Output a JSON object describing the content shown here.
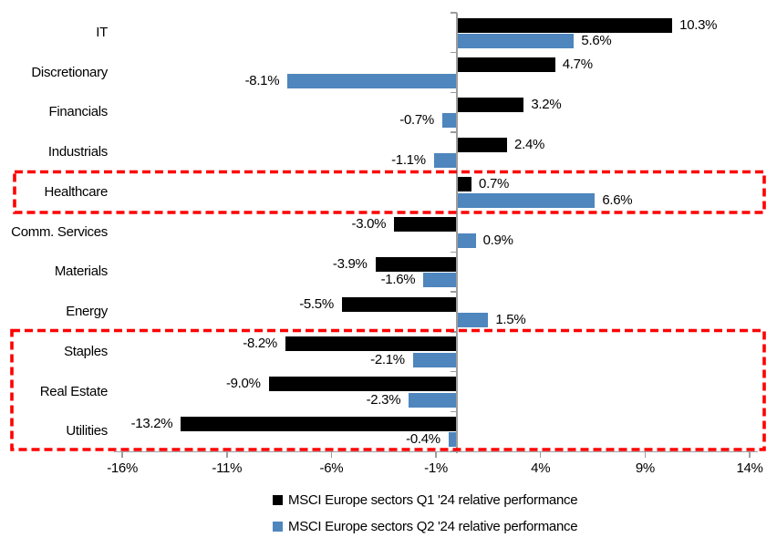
{
  "chart_data": {
    "type": "bar",
    "orientation": "horizontal",
    "title": "",
    "categories": [
      "IT",
      "Discretionary",
      "Financials",
      "Industrials",
      "Healthcare",
      "Comm. Services",
      "Materials",
      "Energy",
      "Staples",
      "Real Estate",
      "Utilities"
    ],
    "series": [
      {
        "name": "MSCI Europe sectors Q1 '24 relative performance",
        "color": "#000000",
        "values": [
          10.3,
          4.7,
          3.2,
          2.4,
          0.7,
          -3.0,
          -3.9,
          -5.5,
          -8.2,
          -9.0,
          -13.2
        ],
        "labels": [
          "10.3%",
          "4.7%",
          "3.2%",
          "2.4%",
          "0.7%",
          "-3.0%",
          "-3.9%",
          "-5.5%",
          "-8.2%",
          "-9.0%",
          "-13.2%"
        ]
      },
      {
        "name": "MSCI Europe sectors Q2 '24 relative performance",
        "color": "#4E86BD",
        "values": [
          5.6,
          -8.1,
          -0.7,
          -1.1,
          6.6,
          0.9,
          -1.6,
          1.5,
          -2.1,
          -2.3,
          -0.4
        ],
        "labels": [
          "5.6%",
          "-8.1%",
          "-0.7%",
          "-1.1%",
          "6.6%",
          "0.9%",
          "-1.6%",
          "1.5%",
          "-2.1%",
          "-2.3%",
          "-0.4%"
        ]
      }
    ],
    "x_axis": {
      "range": [
        -16,
        14
      ],
      "tick_values": [
        -16,
        -11,
        -6,
        -1,
        4,
        9,
        14
      ],
      "tick_labels": [
        "-16%",
        "-11%",
        "-6%",
        "-1%",
        "4%",
        "9%",
        "14%"
      ],
      "unit": "percent"
    },
    "grid": false,
    "legend_position": "bottom",
    "annotations": [
      {
        "type": "highlight-box",
        "style": "dashed",
        "color": "#FE0000",
        "rows": [
          "Healthcare"
        ]
      },
      {
        "type": "highlight-box",
        "style": "dashed",
        "color": "#FE0000",
        "rows": [
          "Staples",
          "Real Estate",
          "Utilities"
        ]
      }
    ]
  },
  "legend": {
    "q1_label": "MSCI Europe sectors Q1 '24 relative performance",
    "q2_label": "MSCI Europe sectors Q2 '24 relative performance"
  },
  "colors": {
    "q1_bar": "#000000",
    "q2_bar": "#4E86BD",
    "axis": "#9D9D9D",
    "highlight": "#FE0000",
    "background": "#FFFFFF"
  }
}
